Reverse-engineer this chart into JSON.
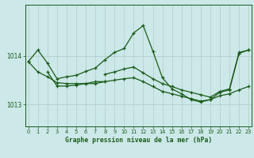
{
  "title": "Graphe pression niveau de la mer (hPa)",
  "bg": "#cce8e8",
  "line_color": "#1a5c1a",
  "vgrid_color": "#b8d0d0",
  "hgrid_color": "#b8d0d0",
  "xlim": [
    -0.3,
    23.3
  ],
  "ylim": [
    1012.55,
    1015.05
  ],
  "yticks": [
    1013,
    1014
  ],
  "xticks": [
    0,
    1,
    2,
    3,
    4,
    5,
    6,
    7,
    8,
    9,
    10,
    11,
    12,
    13,
    14,
    15,
    16,
    17,
    18,
    19,
    20,
    21,
    22,
    23
  ],
  "s1_x": [
    0,
    1,
    2,
    3,
    4,
    5,
    6,
    7,
    8,
    9,
    10,
    11,
    12,
    13,
    14,
    15,
    16,
    17,
    18,
    19,
    20,
    21,
    22,
    23
  ],
  "s1_y": [
    1013.88,
    1014.12,
    1013.85,
    1013.53,
    1013.57,
    1013.6,
    1013.68,
    1013.75,
    1013.92,
    1014.07,
    1014.15,
    1014.47,
    1014.62,
    1014.1,
    1013.55,
    1013.32,
    1013.22,
    1013.1,
    1013.05,
    1013.1,
    1013.25,
    1013.3,
    1014.05,
    1014.12
  ],
  "s2_x": [
    0,
    1,
    2,
    3,
    4,
    5,
    6,
    7,
    8,
    9,
    10,
    11,
    12,
    13,
    14,
    15,
    16,
    17,
    18,
    19,
    20,
    21,
    22,
    23
  ],
  "s2_y": [
    1013.88,
    1013.67,
    1013.57,
    1013.45,
    1013.43,
    1013.43,
    1013.43,
    1013.43,
    1013.47,
    1013.5,
    1013.53,
    1013.55,
    1013.47,
    1013.37,
    1013.27,
    1013.22,
    1013.17,
    1013.12,
    1013.07,
    1013.1,
    1013.18,
    1013.22,
    1013.3,
    1013.37
  ],
  "s3_x": [
    2,
    3,
    4,
    5,
    6,
    7,
    8
  ],
  "s3_y": [
    1013.67,
    1013.38,
    1013.38,
    1013.4,
    1013.43,
    1013.47,
    1013.47
  ],
  "s4_x": [
    8,
    9,
    10,
    11,
    12,
    13,
    14,
    15,
    16,
    17,
    18,
    19,
    20,
    21,
    22,
    23
  ],
  "s4_y": [
    1013.62,
    1013.67,
    1013.73,
    1013.77,
    1013.65,
    1013.53,
    1013.43,
    1013.37,
    1013.3,
    1013.25,
    1013.2,
    1013.15,
    1013.27,
    1013.32,
    1014.07,
    1014.12
  ]
}
